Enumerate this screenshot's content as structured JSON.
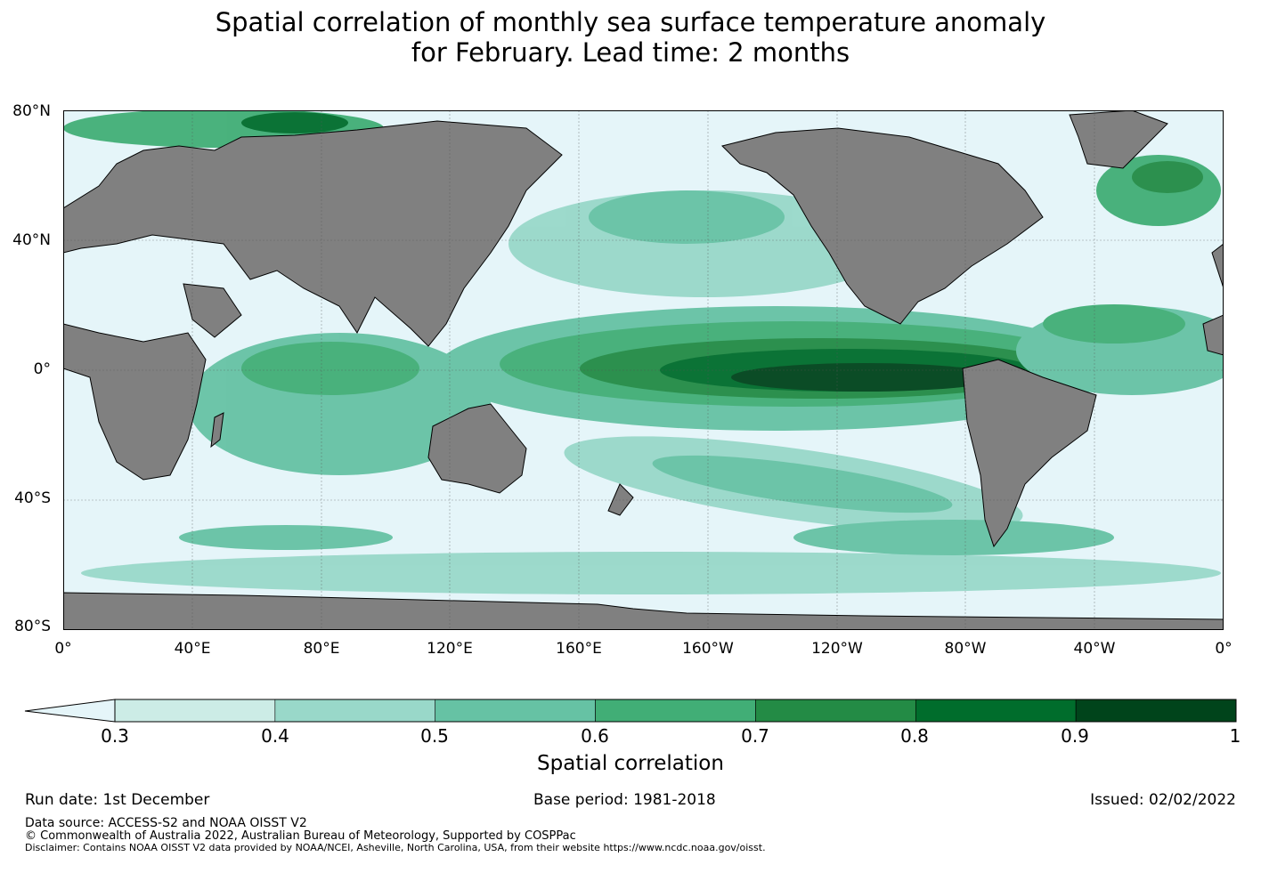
{
  "title": {
    "line1": "Spatial correlation of monthly sea surface temperature anomaly",
    "line2": "for February. Lead time: 2 months"
  },
  "map": {
    "land_color": "#808080",
    "ocean_low_color": "#e5f5f9",
    "lat_labels": [
      "80°N",
      "40°N",
      "0°",
      "40°S",
      "80°S"
    ],
    "lon_labels": [
      "0°",
      "40°E",
      "80°E",
      "120°E",
      "160°E",
      "160°W",
      "120°W",
      "80°W",
      "40°W",
      "0°"
    ]
  },
  "colorbar": {
    "title": "Spatial correlation",
    "ticks": [
      "0.3",
      "0.4",
      "0.5",
      "0.6",
      "0.7",
      "0.8",
      "0.9",
      "1"
    ],
    "extend_color": "#e5f5f9",
    "colors": [
      "#ccece6",
      "#99d8c9",
      "#66c2a4",
      "#41ae76",
      "#238b45",
      "#006d2c",
      "#00441b"
    ]
  },
  "info": {
    "run_date": "Run date: 1st December",
    "base_period": "Base period: 1981-2018",
    "issued": "Issued: 02/02/2022",
    "data_source": "Data source: ACCESS-S2 and NOAA OISST V2",
    "copyright": "© Commonwealth of Australia 2022, Australian Bureau of Meteorology, Supported by COSPPac",
    "disclaimer": "Disclaimer: Contains NOAA OISST V2 data provided by NOAA/NCEI, Asheville, North Carolina, USA, from their website https://www.ncdc.noaa.gov/oisst."
  }
}
